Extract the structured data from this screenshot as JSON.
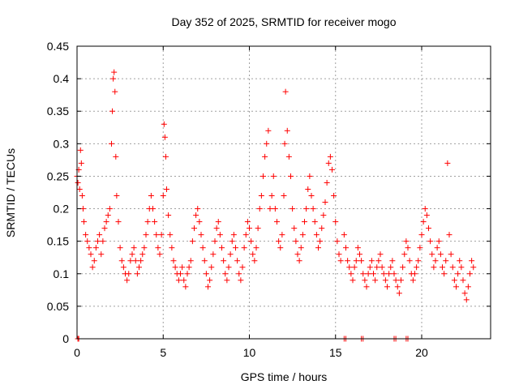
{
  "chart_data": {
    "type": "scatter",
    "title": "Day 352 of 2025, SRMTID for receiver mogo",
    "xlabel": "GPS time / hours",
    "ylabel": "SRMTID / TECUs",
    "xlim": [
      0,
      24
    ],
    "ylim": [
      0,
      0.45
    ],
    "xticks": [
      0,
      5,
      10,
      15,
      20
    ],
    "yticks": [
      0,
      0.05,
      0.1,
      0.15,
      0.2,
      0.25,
      0.3,
      0.35,
      0.4,
      0.45
    ],
    "ytick_labels": [
      "0",
      "0.05",
      "0.1",
      "0.15",
      "0.2",
      "0.25",
      "0.3",
      "0.35",
      "0.4",
      "0.45"
    ],
    "grid": true,
    "marker": "+",
    "color": "#ff0000",
    "series": [
      {
        "name": "SRMTID",
        "x": [
          0.0,
          0.05,
          0.1,
          0.15,
          0.2,
          0.25,
          0.3,
          0.35,
          0.4,
          0.5,
          0.6,
          0.7,
          0.8,
          0.9,
          1.0,
          1.1,
          1.2,
          1.3,
          1.4,
          1.5,
          1.6,
          1.7,
          1.8,
          1.9,
          2.0,
          2.05,
          2.1,
          2.15,
          2.2,
          2.25,
          2.3,
          2.4,
          2.5,
          2.6,
          2.7,
          2.8,
          2.9,
          3.0,
          3.1,
          3.2,
          3.3,
          3.4,
          3.5,
          3.6,
          3.7,
          3.8,
          3.9,
          4.0,
          4.1,
          4.2,
          4.3,
          4.4,
          4.5,
          4.6,
          4.7,
          4.8,
          4.9,
          5.0,
          5.05,
          5.1,
          5.15,
          5.2,
          5.3,
          5.4,
          5.5,
          5.6,
          5.7,
          5.8,
          5.9,
          6.0,
          6.1,
          6.2,
          6.3,
          6.4,
          6.5,
          6.6,
          6.7,
          6.8,
          6.9,
          7.0,
          7.1,
          7.2,
          7.3,
          7.4,
          7.5,
          7.6,
          7.7,
          7.8,
          7.9,
          8.0,
          8.1,
          8.2,
          8.3,
          8.4,
          8.5,
          8.6,
          8.7,
          8.8,
          8.9,
          9.0,
          9.1,
          9.2,
          9.3,
          9.4,
          9.5,
          9.6,
          9.7,
          9.8,
          9.9,
          10.0,
          10.1,
          10.2,
          10.3,
          10.4,
          10.5,
          10.6,
          10.7,
          10.8,
          10.9,
          11.0,
          11.1,
          11.2,
          11.3,
          11.4,
          11.5,
          11.6,
          11.7,
          11.8,
          11.9,
          12.0,
          12.05,
          12.1,
          12.2,
          12.3,
          12.4,
          12.5,
          12.6,
          12.7,
          12.8,
          12.9,
          13.0,
          13.1,
          13.2,
          13.3,
          13.4,
          13.5,
          13.6,
          13.7,
          13.8,
          13.9,
          14.0,
          14.1,
          14.2,
          14.3,
          14.4,
          14.5,
          14.6,
          14.7,
          14.8,
          14.9,
          15.0,
          15.1,
          15.2,
          15.3,
          15.5,
          15.6,
          15.7,
          15.8,
          15.9,
          16.0,
          16.1,
          16.2,
          16.3,
          16.4,
          16.5,
          16.6,
          16.7,
          16.8,
          16.9,
          17.0,
          17.1,
          17.2,
          17.3,
          17.4,
          17.5,
          17.6,
          17.7,
          17.8,
          17.9,
          18.0,
          18.1,
          18.2,
          18.3,
          18.4,
          18.5,
          18.6,
          18.7,
          18.8,
          18.9,
          19.0,
          19.1,
          19.2,
          19.3,
          19.4,
          19.5,
          19.6,
          19.7,
          19.8,
          19.9,
          20.0,
          20.1,
          20.2,
          20.3,
          20.4,
          20.5,
          20.6,
          20.7,
          20.8,
          20.9,
          21.0,
          21.1,
          21.2,
          21.3,
          21.4,
          21.5,
          21.6,
          21.7,
          21.8,
          21.9,
          22.0,
          22.1,
          22.2,
          22.3,
          22.4,
          22.5,
          22.6,
          22.7,
          22.8,
          22.9,
          23.0,
          0.05,
          0.1,
          15.5,
          15.6,
          16.5,
          16.6,
          18.4,
          18.5,
          19.1,
          19.2
        ],
        "y": [
          0.25,
          0.24,
          0.26,
          0.23,
          0.29,
          0.27,
          0.22,
          0.2,
          0.18,
          0.16,
          0.15,
          0.14,
          0.13,
          0.11,
          0.12,
          0.14,
          0.15,
          0.16,
          0.13,
          0.15,
          0.17,
          0.18,
          0.19,
          0.2,
          0.3,
          0.35,
          0.4,
          0.41,
          0.38,
          0.28,
          0.22,
          0.18,
          0.14,
          0.12,
          0.11,
          0.1,
          0.09,
          0.1,
          0.12,
          0.13,
          0.14,
          0.12,
          0.1,
          0.11,
          0.12,
          0.13,
          0.14,
          0.16,
          0.18,
          0.2,
          0.22,
          0.2,
          0.18,
          0.16,
          0.14,
          0.13,
          0.16,
          0.22,
          0.33,
          0.31,
          0.28,
          0.23,
          0.19,
          0.16,
          0.14,
          0.12,
          0.11,
          0.1,
          0.09,
          0.1,
          0.11,
          0.09,
          0.08,
          0.1,
          0.11,
          0.12,
          0.15,
          0.17,
          0.19,
          0.2,
          0.18,
          0.16,
          0.14,
          0.12,
          0.1,
          0.08,
          0.09,
          0.11,
          0.13,
          0.15,
          0.17,
          0.18,
          0.16,
          0.14,
          0.12,
          0.1,
          0.09,
          0.11,
          0.13,
          0.15,
          0.16,
          0.14,
          0.12,
          0.1,
          0.09,
          0.11,
          0.14,
          0.16,
          0.18,
          0.17,
          0.15,
          0.13,
          0.12,
          0.14,
          0.17,
          0.2,
          0.22,
          0.25,
          0.28,
          0.3,
          0.32,
          0.2,
          0.22,
          0.25,
          0.2,
          0.18,
          0.15,
          0.14,
          0.16,
          0.22,
          0.3,
          0.38,
          0.32,
          0.28,
          0.25,
          0.2,
          0.17,
          0.15,
          0.13,
          0.12,
          0.14,
          0.16,
          0.18,
          0.2,
          0.23,
          0.25,
          0.22,
          0.2,
          0.18,
          0.16,
          0.14,
          0.15,
          0.17,
          0.19,
          0.21,
          0.24,
          0.27,
          0.28,
          0.26,
          0.22,
          0.18,
          0.15,
          0.13,
          0.12,
          0.16,
          0.14,
          0.12,
          0.11,
          0.1,
          0.09,
          0.11,
          0.12,
          0.14,
          0.13,
          0.12,
          0.1,
          0.09,
          0.08,
          0.1,
          0.11,
          0.12,
          0.1,
          0.09,
          0.11,
          0.12,
          0.13,
          0.11,
          0.1,
          0.09,
          0.08,
          0.1,
          0.11,
          0.12,
          0.1,
          0.09,
          0.08,
          0.07,
          0.09,
          0.11,
          0.13,
          0.15,
          0.14,
          0.12,
          0.1,
          0.09,
          0.1,
          0.11,
          0.12,
          0.14,
          0.16,
          0.18,
          0.2,
          0.19,
          0.17,
          0.15,
          0.13,
          0.11,
          0.12,
          0.14,
          0.15,
          0.13,
          0.11,
          0.1,
          0.12,
          0.27,
          0.16,
          0.13,
          0.11,
          0.09,
          0.08,
          0.1,
          0.12,
          0.11,
          0.09,
          0.07,
          0.06,
          0.08,
          0.1,
          0.12,
          0.11,
          0.0,
          0.0,
          0.0,
          0.0,
          0.0,
          0.0,
          0.0,
          0.0,
          0.0,
          0.0
        ]
      }
    ]
  }
}
